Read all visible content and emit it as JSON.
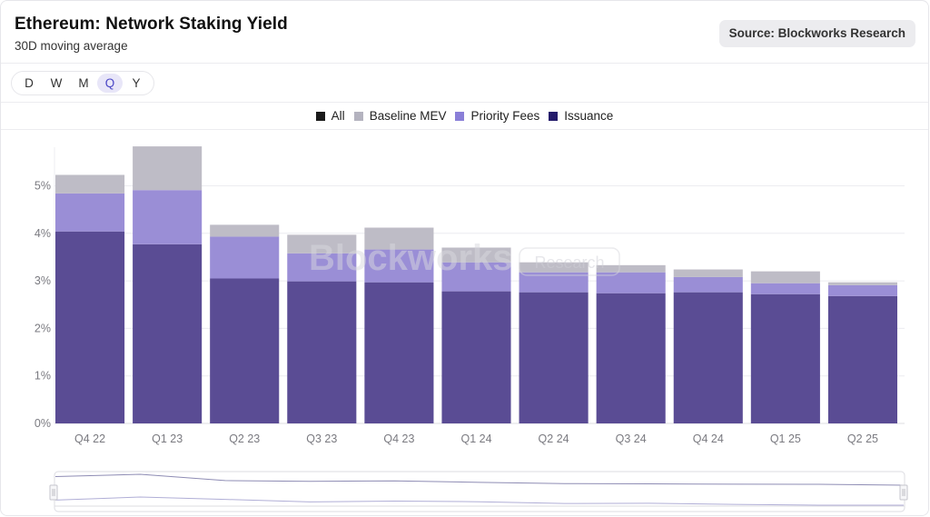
{
  "header": {
    "title": "Ethereum: Network Staking Yield",
    "subtitle": "30D moving average",
    "source": "Source: Blockworks Research"
  },
  "periods": [
    {
      "label": "D",
      "active": false
    },
    {
      "label": "W",
      "active": false
    },
    {
      "label": "M",
      "active": false
    },
    {
      "label": "Q",
      "active": true
    },
    {
      "label": "Y",
      "active": false
    }
  ],
  "legend": [
    {
      "label": "All",
      "color": "#1a1a1a"
    },
    {
      "label": "Baseline MEV",
      "color": "#b4b3bf"
    },
    {
      "label": "Priority Fees",
      "color": "#8a7fd8"
    },
    {
      "label": "Issuance",
      "color": "#241b6b"
    }
  ],
  "watermark": {
    "brand": "Blockworks",
    "tag": "Research"
  },
  "chart_data": {
    "type": "bar",
    "stacked": true,
    "title": "Ethereum: Network Staking Yield",
    "subtitle": "30D moving average",
    "xlabel": "",
    "ylabel": "",
    "ylim": [
      0,
      5.9
    ],
    "yticks": [
      0,
      1,
      2,
      3,
      4,
      5
    ],
    "ytick_labels": [
      "0%",
      "1%",
      "2%",
      "3%",
      "4%",
      "5%"
    ],
    "grid": true,
    "legend_position": "top-center",
    "categories": [
      "Q4 22",
      "Q1 23",
      "Q2 23",
      "Q3 23",
      "Q4 23",
      "Q1 24",
      "Q2 24",
      "Q3 24",
      "Q4 24",
      "Q1 25",
      "Q2 25"
    ],
    "series": [
      {
        "name": "Issuance",
        "color": "#5a4c94",
        "values": [
          4.04,
          3.77,
          3.05,
          2.99,
          2.97,
          2.78,
          2.76,
          2.74,
          2.76,
          2.72,
          2.68
        ]
      },
      {
        "name": "Priority Fees",
        "color": "#9a8ed6",
        "values": [
          0.8,
          1.14,
          0.88,
          0.59,
          0.69,
          0.61,
          0.42,
          0.44,
          0.32,
          0.23,
          0.23
        ]
      },
      {
        "name": "Baseline MEV",
        "color": "#bebcc6",
        "values": [
          0.39,
          0.92,
          0.25,
          0.39,
          0.46,
          0.31,
          0.21,
          0.15,
          0.16,
          0.25,
          0.06
        ]
      }
    ]
  }
}
